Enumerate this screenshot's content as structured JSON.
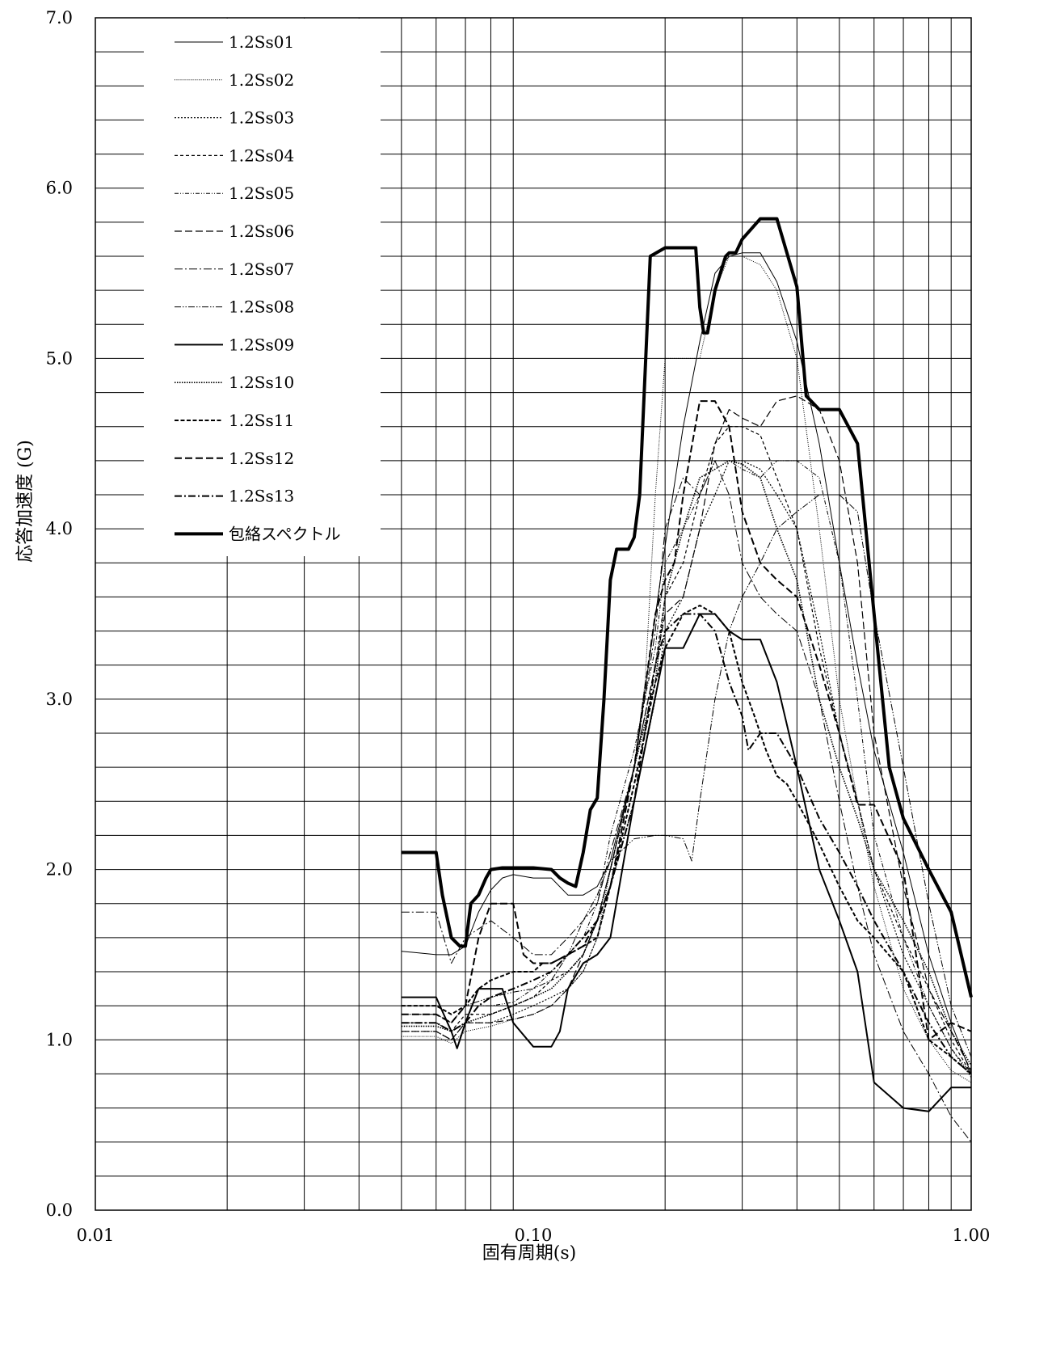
{
  "chart_data": {
    "type": "line",
    "title": "",
    "xlabel": "固有周期(s)",
    "ylabel": "応答加速度 (G)",
    "xscale": "log",
    "xlim": [
      0.01,
      1.0
    ],
    "ylim": [
      0.0,
      7.0
    ],
    "grid": true,
    "legend_position": "top-left",
    "x_tick_labels": [
      {
        "value": 0.01,
        "label": "0.01"
      },
      {
        "value": 0.1,
        "label": "0.10"
      },
      {
        "value": 1.0,
        "label": "1.00"
      }
    ],
    "y_tick_labels": [
      {
        "value": 0,
        "label": "0.0"
      },
      {
        "value": 1,
        "label": "1.0"
      },
      {
        "value": 2,
        "label": "2.0"
      },
      {
        "value": 3,
        "label": "3.0"
      },
      {
        "value": 4,
        "label": "4.0"
      },
      {
        "value": 5,
        "label": "5.0"
      },
      {
        "value": 6,
        "label": "6.0"
      },
      {
        "value": 7,
        "label": "7.0"
      }
    ],
    "series": [
      {
        "name": "1.2Ss01",
        "color": "#000000",
        "width": 1,
        "dash": "",
        "x": [
          0.05,
          0.06,
          0.065,
          0.07,
          0.075,
          0.08,
          0.085,
          0.09,
          0.1,
          0.11,
          0.12,
          0.13,
          0.14,
          0.15,
          0.17,
          0.2,
          0.22,
          0.24,
          0.26,
          0.28,
          0.3,
          0.33,
          0.36,
          0.4,
          0.45,
          0.5,
          0.55,
          0.6,
          0.7,
          0.8,
          0.9,
          1.0
        ],
        "y": [
          1.52,
          1.5,
          1.5,
          1.55,
          1.75,
          1.88,
          1.95,
          1.97,
          1.95,
          1.95,
          1.85,
          1.85,
          1.9,
          2.05,
          2.6,
          3.9,
          4.6,
          5.1,
          5.5,
          5.6,
          5.62,
          5.62,
          5.45,
          5.1,
          4.5,
          3.8,
          3.2,
          2.7,
          2.1,
          1.5,
          1.1,
          0.8
        ]
      },
      {
        "name": "1.2Ss02",
        "color": "#000000",
        "width": 1,
        "dash": "1 1.5",
        "x": [
          0.05,
          0.06,
          0.065,
          0.07,
          0.08,
          0.09,
          0.1,
          0.11,
          0.12,
          0.13,
          0.14,
          0.15,
          0.17,
          0.18,
          0.19,
          0.2,
          0.22,
          0.24,
          0.26,
          0.28,
          0.3,
          0.33,
          0.36,
          0.4,
          0.45,
          0.5,
          0.55,
          0.6,
          0.7,
          0.8,
          0.9,
          1.0
        ],
        "y": [
          1.02,
          1.02,
          0.98,
          1.05,
          1.08,
          1.12,
          1.15,
          1.2,
          1.3,
          1.4,
          1.6,
          2.0,
          2.6,
          3.1,
          4.2,
          5.0,
          5.0,
          5.0,
          5.4,
          5.6,
          5.6,
          5.55,
          5.4,
          5.0,
          4.0,
          3.0,
          2.4,
          1.9,
          1.3,
          1.0,
          0.82,
          0.75
        ]
      },
      {
        "name": "1.2Ss03",
        "color": "#000000",
        "width": 1.2,
        "dash": "2 2",
        "x": [
          0.05,
          0.06,
          0.065,
          0.07,
          0.08,
          0.09,
          0.1,
          0.11,
          0.12,
          0.13,
          0.14,
          0.15,
          0.17,
          0.19,
          0.2,
          0.22,
          0.24,
          0.26,
          0.28,
          0.3,
          0.33,
          0.36,
          0.4,
          0.45,
          0.5,
          0.55,
          0.6,
          0.7,
          0.8,
          0.9,
          1.0
        ],
        "y": [
          1.05,
          1.05,
          1.0,
          1.1,
          1.1,
          1.15,
          1.2,
          1.25,
          1.3,
          1.4,
          1.6,
          1.9,
          2.4,
          3.0,
          3.4,
          3.6,
          4.0,
          4.2,
          4.4,
          4.4,
          4.35,
          4.2,
          4.0,
          3.4,
          2.8,
          2.4,
          2.0,
          1.5,
          1.2,
          0.95,
          0.78
        ]
      },
      {
        "name": "1.2Ss04",
        "color": "#000000",
        "width": 1.2,
        "dash": "4 3",
        "x": [
          0.05,
          0.06,
          0.065,
          0.07,
          0.08,
          0.09,
          0.1,
          0.11,
          0.12,
          0.13,
          0.14,
          0.15,
          0.17,
          0.19,
          0.2,
          0.22,
          0.24,
          0.26,
          0.28,
          0.3,
          0.33,
          0.36,
          0.4,
          0.45,
          0.5,
          0.55,
          0.6,
          0.7,
          0.8,
          0.9,
          1.0
        ],
        "y": [
          1.1,
          1.1,
          1.05,
          1.15,
          1.15,
          1.2,
          1.25,
          1.35,
          1.4,
          1.5,
          1.7,
          2.0,
          2.6,
          3.2,
          3.6,
          3.8,
          4.2,
          4.5,
          4.6,
          4.6,
          4.55,
          4.3,
          4.0,
          3.3,
          2.8,
          2.4,
          2.0,
          1.6,
          1.3,
          1.0,
          0.8
        ]
      },
      {
        "name": "1.2Ss05",
        "color": "#000000",
        "width": 1,
        "dash": "5 2 1 2 1 2",
        "x": [
          0.05,
          0.06,
          0.065,
          0.07,
          0.08,
          0.09,
          0.1,
          0.11,
          0.12,
          0.13,
          0.14,
          0.15,
          0.17,
          0.19,
          0.2,
          0.22,
          0.24,
          0.26,
          0.28,
          0.3,
          0.33,
          0.36,
          0.4,
          0.45,
          0.5,
          0.55,
          0.6,
          0.7,
          0.8,
          0.9,
          1.0
        ],
        "y": [
          1.15,
          1.15,
          1.1,
          1.2,
          1.2,
          1.22,
          1.3,
          1.4,
          1.5,
          1.6,
          1.8,
          2.2,
          2.7,
          3.3,
          3.8,
          4.0,
          4.2,
          4.4,
          4.4,
          4.35,
          4.3,
          4.4,
          4.4,
          4.3,
          3.8,
          3.0,
          2.2,
          1.6,
          1.2,
          0.95,
          0.8
        ]
      },
      {
        "name": "1.2Ss06",
        "color": "#000000",
        "width": 1.2,
        "dash": "9 4",
        "x": [
          0.05,
          0.06,
          0.065,
          0.07,
          0.08,
          0.09,
          0.1,
          0.11,
          0.12,
          0.13,
          0.14,
          0.15,
          0.17,
          0.19,
          0.2,
          0.22,
          0.24,
          0.26,
          0.28,
          0.3,
          0.33,
          0.36,
          0.4,
          0.45,
          0.5,
          0.55,
          0.6,
          0.7,
          0.8,
          0.9,
          1.0
        ],
        "y": [
          1.05,
          1.05,
          1.0,
          1.1,
          1.1,
          1.12,
          1.15,
          1.2,
          1.3,
          1.5,
          1.7,
          2.0,
          2.6,
          3.2,
          3.5,
          3.6,
          4.0,
          4.5,
          4.7,
          4.65,
          4.6,
          4.75,
          4.78,
          4.7,
          4.4,
          3.8,
          2.8,
          1.9,
          1.3,
          1.05,
          0.82
        ]
      },
      {
        "name": "1.2Ss07",
        "color": "#000000",
        "width": 1,
        "dash": "10 3 2 3",
        "x": [
          0.05,
          0.06,
          0.065,
          0.07,
          0.08,
          0.09,
          0.1,
          0.11,
          0.12,
          0.13,
          0.14,
          0.15,
          0.17,
          0.19,
          0.2,
          0.22,
          0.24,
          0.26,
          0.28,
          0.3,
          0.33,
          0.36,
          0.4,
          0.45,
          0.5,
          0.55,
          0.6,
          0.7,
          0.8,
          0.9,
          1.0
        ],
        "y": [
          1.75,
          1.75,
          1.45,
          1.6,
          1.7,
          1.6,
          1.5,
          1.5,
          1.6,
          1.7,
          1.8,
          2.1,
          2.6,
          3.4,
          4.0,
          4.3,
          4.2,
          4.4,
          4.2,
          3.8,
          3.6,
          3.5,
          3.4,
          3.0,
          2.4,
          1.9,
          1.5,
          1.05,
          0.8,
          0.55,
          0.4
        ]
      },
      {
        "name": "1.2Ss08",
        "color": "#000000",
        "width": 1,
        "dash": "8 2 1.5 2 1.5 2",
        "x": [
          0.05,
          0.06,
          0.065,
          0.07,
          0.08,
          0.09,
          0.1,
          0.11,
          0.12,
          0.13,
          0.14,
          0.15,
          0.17,
          0.19,
          0.2,
          0.22,
          0.23,
          0.24,
          0.26,
          0.28,
          0.3,
          0.33,
          0.36,
          0.4,
          0.45,
          0.5,
          0.55,
          0.6,
          0.7,
          0.8,
          0.9,
          1.0
        ],
        "y": [
          1.15,
          1.15,
          1.1,
          1.2,
          1.25,
          1.28,
          1.3,
          1.35,
          1.5,
          1.7,
          1.85,
          2.05,
          2.18,
          2.2,
          2.2,
          2.18,
          2.05,
          2.4,
          3.0,
          3.4,
          3.6,
          3.8,
          4.0,
          4.1,
          4.2,
          4.2,
          4.1,
          3.5,
          2.6,
          1.8,
          1.2,
          0.9
        ]
      },
      {
        "name": "1.2Ss09",
        "color": "#000000",
        "width": 2,
        "dash": "",
        "x": [
          0.05,
          0.06,
          0.065,
          0.067,
          0.07,
          0.075,
          0.085,
          0.09,
          0.1,
          0.11,
          0.115,
          0.12,
          0.13,
          0.14,
          0.15,
          0.17,
          0.2,
          0.22,
          0.24,
          0.26,
          0.28,
          0.3,
          0.33,
          0.36,
          0.4,
          0.45,
          0.5,
          0.55,
          0.6,
          0.7,
          0.8,
          0.9,
          1.0
        ],
        "y": [
          1.25,
          1.25,
          1.05,
          0.95,
          1.1,
          1.3,
          1.3,
          1.1,
          0.96,
          0.96,
          1.05,
          1.3,
          1.45,
          1.5,
          1.6,
          2.4,
          3.3,
          3.3,
          3.5,
          3.5,
          3.4,
          3.35,
          3.35,
          3.1,
          2.6,
          2.0,
          1.7,
          1.4,
          0.75,
          0.6,
          0.58,
          0.72,
          0.72
        ]
      },
      {
        "name": "1.2Ss10",
        "color": "#000000",
        "width": 1.6,
        "dash": "1.5 1.5",
        "x": [
          0.05,
          0.06,
          0.065,
          0.07,
          0.08,
          0.09,
          0.1,
          0.11,
          0.12,
          0.13,
          0.14,
          0.15,
          0.17,
          0.19,
          0.2,
          0.22,
          0.24,
          0.26,
          0.28,
          0.3,
          0.33,
          0.36,
          0.4,
          0.45,
          0.5,
          0.55,
          0.6,
          0.7,
          0.8,
          0.9,
          1.0
        ],
        "y": [
          1.08,
          1.08,
          1.05,
          1.1,
          1.15,
          1.2,
          1.25,
          1.3,
          1.4,
          1.5,
          1.7,
          2.0,
          2.6,
          3.1,
          3.6,
          4.0,
          4.3,
          4.35,
          4.4,
          4.38,
          4.3,
          4.0,
          3.7,
          3.0,
          2.6,
          2.3,
          2.0,
          1.7,
          1.4,
          1.05,
          0.85
        ]
      },
      {
        "name": "1.2Ss11",
        "color": "#000000",
        "width": 2,
        "dash": "5 2.5",
        "x": [
          0.05,
          0.06,
          0.065,
          0.07,
          0.075,
          0.08,
          0.09,
          0.1,
          0.105,
          0.11,
          0.12,
          0.13,
          0.14,
          0.15,
          0.17,
          0.19,
          0.2,
          0.22,
          0.24,
          0.26,
          0.28,
          0.3,
          0.32,
          0.34,
          0.36,
          0.38,
          0.4,
          0.45,
          0.5,
          0.55,
          0.6,
          0.7,
          0.8,
          0.9,
          1.0
        ],
        "y": [
          1.2,
          1.2,
          1.15,
          1.2,
          1.3,
          1.35,
          1.4,
          1.4,
          1.45,
          1.45,
          1.5,
          1.55,
          1.6,
          1.9,
          2.5,
          3.1,
          3.3,
          3.5,
          3.55,
          3.5,
          3.4,
          3.1,
          2.9,
          2.7,
          2.55,
          2.5,
          2.4,
          2.15,
          1.9,
          1.7,
          1.6,
          1.4,
          1.0,
          0.9,
          0.8
        ]
      },
      {
        "name": "1.2Ss12",
        "color": "#000000",
        "width": 2,
        "dash": "9 4",
        "x": [
          0.05,
          0.06,
          0.065,
          0.07,
          0.075,
          0.08,
          0.09,
          0.095,
          0.1,
          0.11,
          0.12,
          0.13,
          0.14,
          0.15,
          0.17,
          0.19,
          0.2,
          0.21,
          0.22,
          0.24,
          0.26,
          0.28,
          0.3,
          0.33,
          0.36,
          0.4,
          0.45,
          0.5,
          0.55,
          0.6,
          0.7,
          0.8,
          0.9,
          1.0
        ],
        "y": [
          1.15,
          1.15,
          1.1,
          1.2,
          1.6,
          1.8,
          1.8,
          1.5,
          1.45,
          1.45,
          1.5,
          1.55,
          1.7,
          1.9,
          2.6,
          3.5,
          3.7,
          3.8,
          4.2,
          4.75,
          4.75,
          4.6,
          4.1,
          3.8,
          3.7,
          3.6,
          3.2,
          2.8,
          2.38,
          2.38,
          2.0,
          1.0,
          1.1,
          1.05
        ]
      },
      {
        "name": "1.2Ss13",
        "color": "#000000",
        "width": 2,
        "dash": "9 3 2 3",
        "x": [
          0.05,
          0.06,
          0.065,
          0.07,
          0.075,
          0.08,
          0.09,
          0.1,
          0.11,
          0.12,
          0.13,
          0.14,
          0.15,
          0.17,
          0.19,
          0.2,
          0.22,
          0.24,
          0.26,
          0.28,
          0.3,
          0.31,
          0.33,
          0.36,
          0.4,
          0.45,
          0.5,
          0.55,
          0.6,
          0.7,
          0.8,
          0.9,
          1.0
        ],
        "y": [
          1.1,
          1.1,
          1.05,
          1.1,
          1.2,
          1.25,
          1.3,
          1.35,
          1.4,
          1.5,
          1.6,
          1.7,
          1.9,
          2.4,
          3.2,
          3.4,
          3.5,
          3.5,
          3.4,
          3.1,
          2.9,
          2.7,
          2.8,
          2.8,
          2.6,
          2.3,
          2.1,
          1.9,
          1.7,
          1.4,
          1.1,
          0.9,
          0.8
        ]
      },
      {
        "name": "包絡スペクトル",
        "color": "#000000",
        "width": 4,
        "dash": "",
        "x": [
          0.05,
          0.06,
          0.062,
          0.065,
          0.068,
          0.07,
          0.072,
          0.075,
          0.078,
          0.08,
          0.085,
          0.1,
          0.11,
          0.115,
          0.12,
          0.125,
          0.13,
          0.135,
          0.14,
          0.145,
          0.15,
          0.155,
          0.16,
          0.165,
          0.17,
          0.175,
          0.185,
          0.2,
          0.22,
          0.235,
          0.24,
          0.245,
          0.25,
          0.26,
          0.275,
          0.28,
          0.29,
          0.3,
          0.33,
          0.36,
          0.4,
          0.42,
          0.45,
          0.5,
          0.55,
          0.6,
          0.65,
          0.7,
          0.8,
          0.9,
          1.0
        ],
        "y": [
          2.1,
          2.1,
          1.85,
          1.6,
          1.55,
          1.55,
          1.8,
          1.85,
          1.95,
          2.0,
          2.01,
          2.01,
          2.0,
          1.95,
          1.92,
          1.9,
          2.1,
          2.35,
          2.42,
          3.0,
          3.7,
          3.88,
          3.88,
          3.88,
          3.95,
          4.2,
          5.6,
          5.65,
          5.65,
          5.65,
          5.3,
          5.15,
          5.15,
          5.4,
          5.6,
          5.62,
          5.62,
          5.7,
          5.82,
          5.82,
          5.42,
          4.78,
          4.7,
          4.7,
          4.5,
          3.5,
          2.6,
          2.3,
          2.0,
          1.75,
          1.25
        ]
      }
    ]
  }
}
